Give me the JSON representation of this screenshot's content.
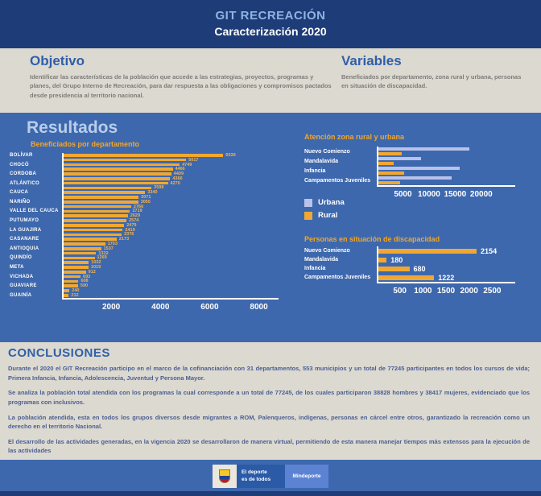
{
  "header": {
    "title": "GIT RECREACIÓN",
    "subtitle": "Caracterización 2020"
  },
  "objetivo": {
    "heading": "Objetivo",
    "body": "Identificar las características de la población que accede a las estrategias, proyectos, programas y planes, del Grupo Interno de Recreación, para dar respuesta a las obligaciones y compromisos pactados desde presidencia al territorio nacional."
  },
  "variables": {
    "heading": "Variables",
    "body": "Beneficiados por departamento, zona rural y urbana, personas en situación de discapacidad."
  },
  "resultados": {
    "heading": "Resultados"
  },
  "chart_data": [
    {
      "type": "bar",
      "orientation": "horizontal",
      "title": "Beneficiados por departamento",
      "categories": [
        "BOLÍVAR",
        "",
        "CHOCÓ",
        "",
        "CORDOBA",
        "",
        " ATLÁNTICO",
        "",
        "CAUCA",
        "",
        "NARIÑO",
        "",
        "VALLE DEL CAUCA",
        "",
        "PUTUMAYO",
        "",
        "LA GUAJIRA",
        "",
        "CASANARE",
        "",
        "ANTIOQUIA",
        "",
        "QUINDÍO",
        "",
        "META",
        "",
        "VICHADA",
        "",
        "GUAVIARE",
        "",
        "GUAINÍA"
      ],
      "values": [
        6539,
        5017,
        4749,
        4466,
        4409,
        4366,
        4270,
        3598,
        3340,
        3071,
        3055,
        2766,
        2719,
        2629,
        2574,
        2479,
        2419,
        2376,
        2173,
        1703,
        1537,
        1332,
        1269,
        1032,
        1019,
        912,
        693,
        608,
        590,
        240,
        212
      ],
      "note": "labels shown on every other bar",
      "xticks": [
        2000,
        4000,
        6000,
        8000
      ],
      "xlim": [
        0,
        8800
      ],
      "bar_color": "#F0A832",
      "value_label_color": "#F2B44D"
    },
    {
      "type": "bar",
      "orientation": "horizontal",
      "title": "Atención zona rural y urbana",
      "categories": [
        "Nuevo Comienzo",
        "Mandalavida",
        "Infancia",
        "Campamentos Juveniles"
      ],
      "series": [
        {
          "name": "Urbana",
          "color": "#B9C2EA",
          "values": [
            17600,
            8200,
            15800,
            14200
          ]
        },
        {
          "name": "Rural",
          "color": "#F0A832",
          "values": [
            4500,
            2900,
            5000,
            4200
          ]
        }
      ],
      "values_estimated_from_axis": true,
      "xticks": [
        5000,
        10000,
        15000,
        20000
      ],
      "xlim": [
        0,
        26500
      ],
      "legend_position": "bottom-left"
    },
    {
      "type": "bar",
      "orientation": "horizontal",
      "title": "Personas en situación de discapacidad",
      "categories": [
        "Nuevo Comienzo",
        "Mandalavida",
        "Infancia",
        "Campamentos Juveniles"
      ],
      "values": [
        2154,
        180,
        680,
        1222
      ],
      "xticks": [
        500,
        1000,
        1500,
        2000,
        2500
      ],
      "xlim": [
        0,
        3000
      ],
      "bar_color": "#F0A832",
      "value_label_color": "#FFFFFF"
    }
  ],
  "conclusiones": {
    "heading": "CONCLUSIONES",
    "paragraphs": [
      "Durante el 2020 el GIT Recreación participo en el marco de la cofinanciación con 31 departamentos, 553 municipios y un total de 77245 participantes en todos los cursos de vida; Primera Infancia, Infancia, Adolescencia, Juventud y Persona Mayor.",
      "Se analiza la población total atendida con los programas la cual corresponde a un total de 77245, de los cuales participaron 38828 hombres y 38417 mujeres, evidenciado que los programas con inclusivos.",
      "La población atendida, esta en todos los grupos diversos desde migrantes a ROM, Palenqueros, indígenas, personas en cárcel entre otros, garantizado la recreación como un derecho en el territorio Nacional.",
      "El desarrollo de las actividades generadas, en la vigencia 2020 se desarrollaron de manera virtual, permitiendo de esta manera manejar tiempos más extensos para la ejecución de las actividades"
    ]
  },
  "footer": {
    "logo_line1": "El deporte",
    "logo_line2": "es de todos",
    "brand": "Mindeporte"
  },
  "colors": {
    "header_bg": "#1E3C78",
    "band_bg": "#DCD9D1",
    "results_bg": "#3E68AD",
    "accent_orange": "#F0A832",
    "accent_periwinkle": "#B9C2EA",
    "heading_blue": "#2F5FA8",
    "light_heading_blue": "#B9CDEA",
    "conclusion_text": "#4B5F92"
  }
}
